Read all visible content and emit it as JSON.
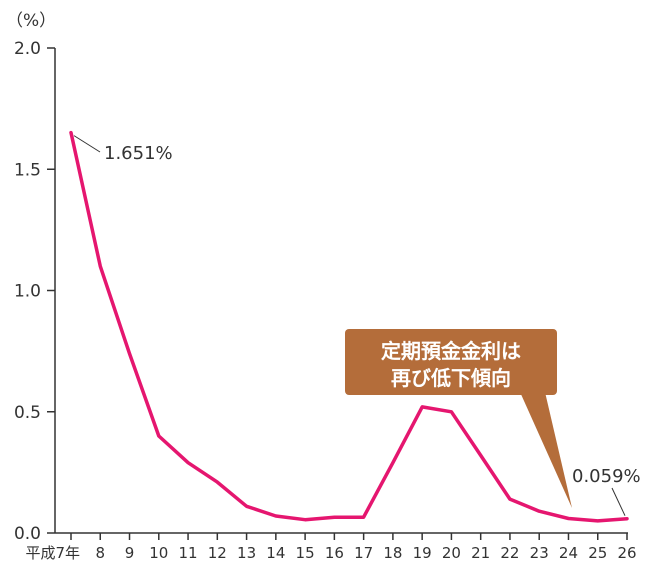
{
  "chart_data": {
    "type": "line",
    "unit_label": "（%）",
    "x": [
      "平成7年",
      "8",
      "9",
      "10",
      "11",
      "12",
      "13",
      "14",
      "15",
      "16",
      "17",
      "18",
      "19",
      "20",
      "21",
      "22",
      "23",
      "24",
      "25",
      "26"
    ],
    "series": [
      {
        "values": [
          1.651,
          1.1,
          0.74,
          0.4,
          0.29,
          0.21,
          0.11,
          0.07,
          0.055,
          0.065,
          0.065,
          0.29,
          0.52,
          0.5,
          0.32,
          0.14,
          0.09,
          0.06,
          0.05,
          0.059
        ],
        "color": "#e5166f"
      }
    ],
    "ylim": [
      0,
      2.0
    ],
    "yticks": [
      "0.0",
      "0.5",
      "1.0",
      "1.5",
      "2.0"
    ],
    "grid": false,
    "annotations": {
      "start_value": "1.651%",
      "end_value": "0.059%",
      "callout_line1": "定期預金金利は",
      "callout_line2": "再び低下傾向"
    },
    "colors": {
      "line": "#e5166f",
      "callout_fill": "#b46d3a",
      "axis": "#333333"
    }
  }
}
